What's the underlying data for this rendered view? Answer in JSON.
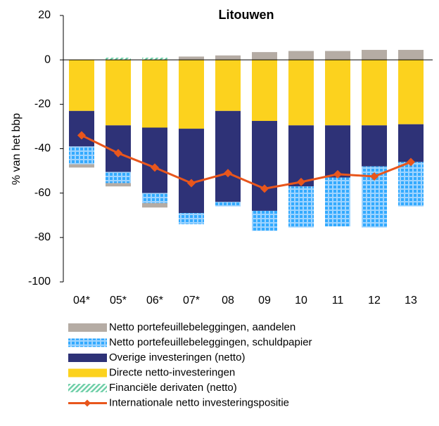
{
  "chart_data": {
    "type": "bar",
    "stacked": true,
    "title": "Litouwen",
    "y_label": "% van het bbp",
    "categories": [
      "04*",
      "05*",
      "06*",
      "07*",
      "08",
      "09",
      "10",
      "11",
      "12",
      "13"
    ],
    "ylim": [
      -100,
      20
    ],
    "yticks": [
      -100,
      -80,
      -60,
      -40,
      -20,
      0,
      20
    ],
    "series": [
      {
        "name": "Netto portefeuillebeleggingen, aandelen",
        "color": "#b5aca4",
        "values": [
          -1.5,
          -1.5,
          -2,
          1.5,
          2,
          3.5,
          4,
          4,
          4.5,
          4.5
        ]
      },
      {
        "name": "Netto portefeuillebeleggingen, schuldpapier",
        "color": "#33aaff",
        "pattern": "dots",
        "values": [
          -8,
          -5,
          -4.5,
          -5,
          -2,
          -9,
          -18.5,
          -22,
          -27.5,
          -20
        ]
      },
      {
        "name": "Overige investeringen (netto)",
        "color": "#2e3277",
        "values": [
          -16,
          -21,
          -29.5,
          -38,
          -41,
          -40.5,
          -27.5,
          -23.5,
          -18.5,
          -17
        ]
      },
      {
        "name": "Directe netto-investeringen",
        "color": "#fcd21e",
        "values": [
          -23,
          -29.5,
          -30.5,
          -31,
          -23,
          -27.5,
          -29.5,
          -29.5,
          -29.5,
          -29
        ]
      },
      {
        "name": "Financiële derivaten (netto)",
        "color": "#6fcfa8",
        "pattern": "hatch",
        "values": [
          0,
          1,
          1,
          0,
          0,
          0,
          0,
          0,
          0,
          0
        ]
      },
      {
        "name": "Internationale netto investeringspositie",
        "type": "line",
        "color": "#e8561c",
        "values": [
          -34,
          -42,
          -48.5,
          -55.5,
          -51,
          -58,
          -55,
          -51.5,
          -52.5,
          -46
        ]
      }
    ]
  }
}
